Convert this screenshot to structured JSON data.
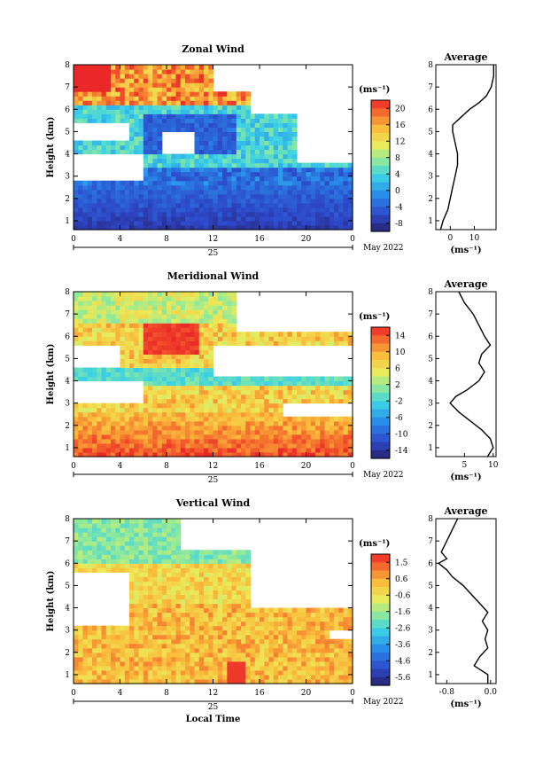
{
  "chart_data": [
    {
      "type": "heatmap",
      "title": "Zonal Wind",
      "xlabel": "",
      "ylabel": "Height (km)",
      "xlim": [
        0,
        24
      ],
      "ylim": [
        0.6,
        8
      ],
      "xticks": [
        "0",
        "4",
        "8",
        "12",
        "16",
        "20",
        "0"
      ],
      "yticks": [
        "1",
        "2",
        "3",
        "4",
        "5",
        "6",
        "7",
        "8"
      ],
      "date_day": "25",
      "date_label": "May 2022",
      "colorbar": {
        "unit": "(ms⁻¹)",
        "ticks": [
          "20",
          "16",
          "12",
          "8",
          "4",
          "0",
          "-4",
          "-8"
        ],
        "range": [
          -10,
          22
        ]
      },
      "profile": {
        "title": "Average",
        "xlabel": "(ms⁻¹)",
        "xticks": [
          "0",
          "10"
        ],
        "xlim": [
          -6,
          19
        ],
        "height": [
          0.6,
          1.0,
          1.5,
          2.0,
          2.5,
          3.0,
          3.5,
          4.0,
          4.5,
          5.0,
          5.3,
          5.6,
          6.0,
          6.3,
          6.6,
          7.0,
          7.5,
          8.0
        ],
        "value": [
          -4,
          -3,
          -1,
          0,
          1,
          2,
          3,
          3,
          2,
          1,
          1,
          4,
          8,
          12,
          15,
          17,
          18,
          18
        ]
      }
    },
    {
      "type": "heatmap",
      "title": "Meridional Wind",
      "xlabel": "",
      "ylabel": "Height (km)",
      "xlim": [
        0,
        24
      ],
      "ylim": [
        0.6,
        8
      ],
      "xticks": [
        "0",
        "4",
        "8",
        "12",
        "16",
        "20",
        "0"
      ],
      "yticks": [
        "1",
        "2",
        "3",
        "4",
        "5",
        "6",
        "7",
        "8"
      ],
      "date_day": "25",
      "date_label": "May 2022",
      "colorbar": {
        "unit": "(ms⁻¹)",
        "ticks": [
          "14",
          "10",
          "6",
          "2",
          "-2",
          "-6",
          "-10",
          "-14"
        ],
        "range": [
          -16,
          16
        ]
      },
      "profile": {
        "title": "Average",
        "xlabel": "(ms⁻¹)",
        "xticks": [
          "5",
          "10"
        ],
        "xlim": [
          0,
          10.5
        ],
        "height": [
          0.6,
          1.0,
          1.4,
          1.8,
          2.2,
          2.6,
          3.0,
          3.3,
          3.6,
          4.0,
          4.4,
          4.8,
          5.2,
          5.6,
          6.0,
          6.5,
          7.0,
          7.5,
          8.0
        ],
        "value": [
          9,
          10,
          9.5,
          8,
          6,
          4,
          2.5,
          3.5,
          5.5,
          7.5,
          8.5,
          7.5,
          8,
          9.5,
          8.5,
          7.5,
          6.5,
          5,
          4
        ]
      }
    },
    {
      "type": "heatmap",
      "title": "Vertical Wind",
      "xlabel": "Local Time",
      "ylabel": "Height (km)",
      "xlim": [
        0,
        24
      ],
      "ylim": [
        0.6,
        8
      ],
      "xticks": [
        "0",
        "4",
        "8",
        "12",
        "16",
        "20",
        "0"
      ],
      "yticks": [
        "1",
        "2",
        "3",
        "4",
        "5",
        "6",
        "7",
        "8"
      ],
      "date_day": "25",
      "date_label": "May 2022",
      "colorbar": {
        "unit": "(ms⁻¹)",
        "ticks": [
          "1.5",
          "0.6",
          "-0.6",
          "-1.6",
          "-2.6",
          "-3.6",
          "-4.6",
          "-5.6"
        ],
        "range": [
          -6.1,
          2.0
        ]
      },
      "profile": {
        "title": "Average",
        "xlabel": "(ms⁻¹)",
        "xticks": [
          "-0.8",
          "0.0"
        ],
        "xlim": [
          -1.0,
          0.1
        ],
        "height": [
          0.6,
          1.0,
          1.4,
          1.8,
          2.2,
          2.6,
          3.0,
          3.4,
          3.8,
          4.2,
          4.6,
          5.0,
          5.4,
          5.7,
          6.0,
          6.2,
          6.5,
          7.0,
          7.5,
          8.0
        ],
        "value": [
          -0.05,
          -0.05,
          -0.3,
          -0.2,
          -0.05,
          -0.1,
          -0.05,
          -0.15,
          -0.05,
          -0.2,
          -0.35,
          -0.5,
          -0.7,
          -0.8,
          -0.95,
          -0.8,
          -0.9,
          -0.8,
          -0.7,
          -0.6
        ]
      }
    }
  ]
}
